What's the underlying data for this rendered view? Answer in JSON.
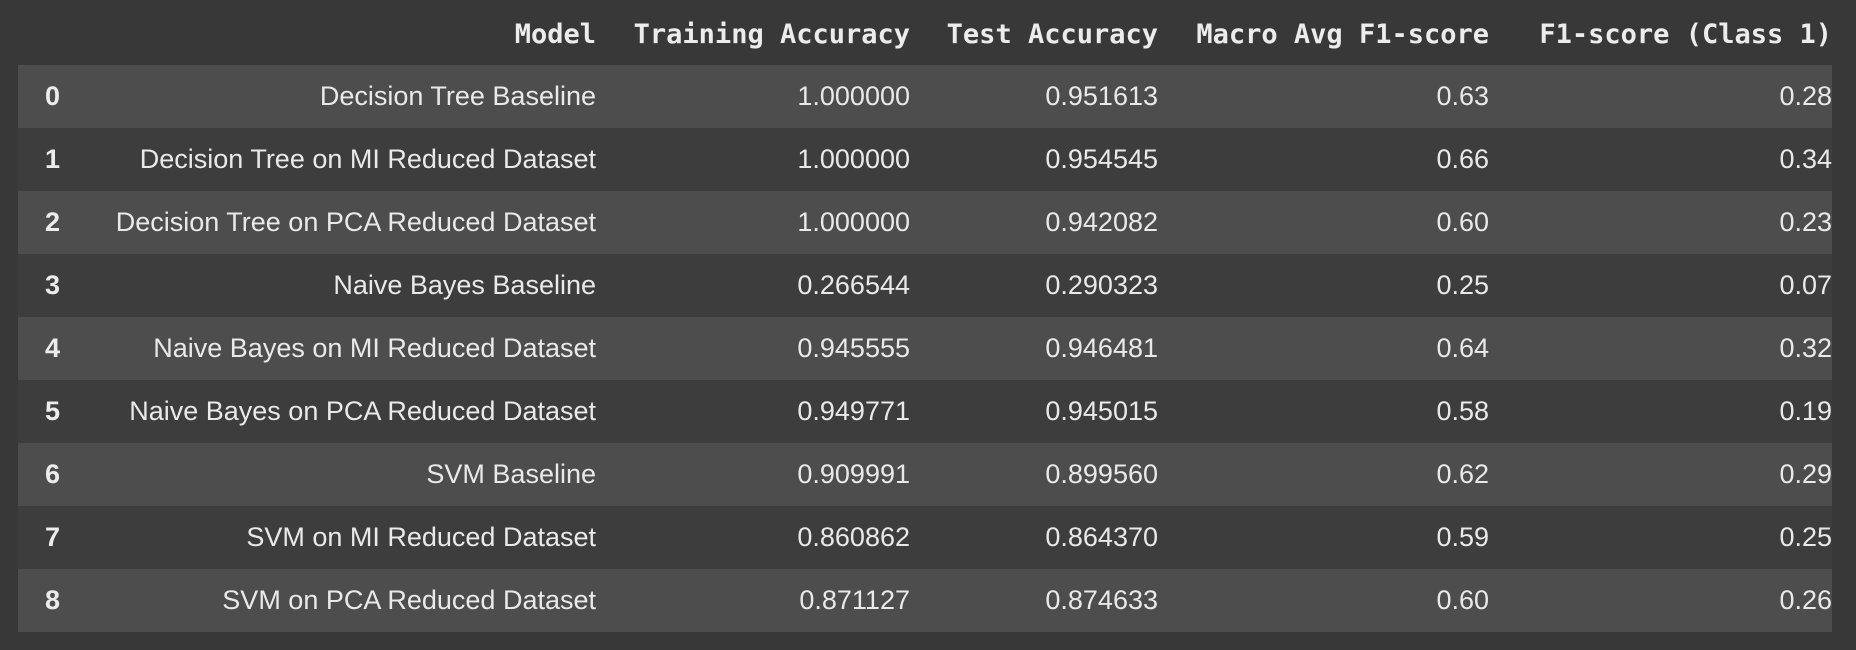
{
  "table": {
    "columns": [
      "",
      "Model",
      "Training Accuracy",
      "Test Accuracy",
      "Macro Avg F1-score",
      "F1-score (Class 1)"
    ],
    "rows": [
      {
        "index": "0",
        "model": "Decision Tree Baseline",
        "train": "1.000000",
        "test": "0.951613",
        "macro": "0.63",
        "f1": "0.28"
      },
      {
        "index": "1",
        "model": "Decision Tree on MI Reduced Dataset",
        "train": "1.000000",
        "test": "0.954545",
        "macro": "0.66",
        "f1": "0.34"
      },
      {
        "index": "2",
        "model": "Decision Tree on PCA Reduced Dataset",
        "train": "1.000000",
        "test": "0.942082",
        "macro": "0.60",
        "f1": "0.23"
      },
      {
        "index": "3",
        "model": "Naive Bayes Baseline",
        "train": "0.266544",
        "test": "0.290323",
        "macro": "0.25",
        "f1": "0.07"
      },
      {
        "index": "4",
        "model": "Naive Bayes on MI Reduced Dataset",
        "train": "0.945555",
        "test": "0.946481",
        "macro": "0.64",
        "f1": "0.32"
      },
      {
        "index": "5",
        "model": "Naive Bayes on PCA Reduced Dataset",
        "train": "0.949771",
        "test": "0.945015",
        "macro": "0.58",
        "f1": "0.19"
      },
      {
        "index": "6",
        "model": "SVM Baseline",
        "train": "0.909991",
        "test": "0.899560",
        "macro": "0.62",
        "f1": "0.29"
      },
      {
        "index": "7",
        "model": "SVM on MI Reduced Dataset",
        "train": "0.860862",
        "test": "0.864370",
        "macro": "0.59",
        "f1": "0.25"
      },
      {
        "index": "8",
        "model": "SVM on PCA Reduced Dataset",
        "train": "0.871127",
        "test": "0.874633",
        "macro": "0.60",
        "f1": "0.26"
      }
    ]
  },
  "colors": {
    "background": "#383838",
    "row_odd": "#4d4d4d",
    "row_even": "#3d3d3d",
    "text": "#e8e8e8"
  }
}
